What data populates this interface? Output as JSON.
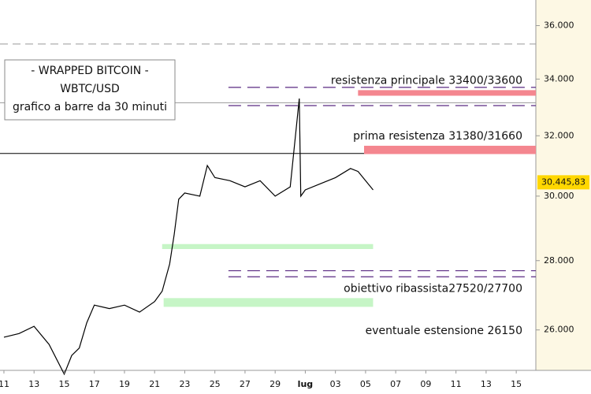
{
  "chart_data": {
    "type": "line",
    "title_lines": [
      "- WRAPPED BITCOIN -",
      "WBTC/USD",
      "grafico a barre da 30 minuti"
    ],
    "log_scale": true,
    "xlim": [
      -0.26,
      35.3
    ],
    "ylim": [
      24900,
      37000
    ],
    "xticks": [
      {
        "value": 0,
        "label": "11"
      },
      {
        "value": 2,
        "label": "13"
      },
      {
        "value": 4,
        "label": "15"
      },
      {
        "value": 6,
        "label": "17"
      },
      {
        "value": 8,
        "label": "19"
      },
      {
        "value": 10,
        "label": "21"
      },
      {
        "value": 12,
        "label": "23"
      },
      {
        "value": 14,
        "label": "25"
      },
      {
        "value": 16,
        "label": "27"
      },
      {
        "value": 18,
        "label": "29"
      },
      {
        "value": 20,
        "label": "lug"
      },
      {
        "value": 22,
        "label": "03"
      },
      {
        "value": 24,
        "label": "05"
      },
      {
        "value": 26,
        "label": "07"
      },
      {
        "value": 28,
        "label": "09"
      },
      {
        "value": 30,
        "label": "11"
      },
      {
        "value": 32,
        "label": "13"
      },
      {
        "value": 34,
        "label": "15"
      }
    ],
    "yticks": [
      {
        "value": 26000,
        "label": "26.000"
      },
      {
        "value": 28000,
        "label": "28.000"
      },
      {
        "value": 30000,
        "label": "30.000"
      },
      {
        "value": 32000,
        "label": "32.000"
      },
      {
        "value": 34000,
        "label": "34.000"
      },
      {
        "value": 36000,
        "label": "36.000"
      }
    ],
    "series": [
      {
        "name": "WBTC/USD",
        "color": "#000000",
        "x": [
          0,
          1,
          2,
          3,
          4,
          4.5,
          5,
          5.5,
          6,
          7,
          8,
          9,
          10,
          10.5,
          11,
          11.3,
          11.6,
          12,
          13,
          13.5,
          14,
          15,
          16,
          17,
          18,
          19,
          19.6,
          19.7,
          20,
          21,
          22,
          23,
          23.5,
          24,
          24.5
        ],
        "values": [
          25800,
          25900,
          26100,
          25600,
          24800,
          25300,
          25500,
          26200,
          26700,
          26600,
          26700,
          26500,
          26800,
          27100,
          27900,
          28800,
          29900,
          30100,
          30000,
          31000,
          30600,
          30500,
          30300,
          30500,
          30000,
          30300,
          33300,
          30000,
          30200,
          30400,
          30600,
          30900,
          30800,
          30500,
          30200
        ]
      }
    ],
    "last_price": {
      "value": 30445.83,
      "label": "30.445,83",
      "color": "#ffd700"
    },
    "zones": [
      {
        "label": "resistenza principale 33400/33600",
        "low": 33400,
        "high": 33600,
        "x": [
          23.5,
          35.3
        ],
        "color": "#f4868f"
      },
      {
        "label": "prima resistenza 31380/31660",
        "low": 31380,
        "high": 31660,
        "x": [
          23.9,
          35.3
        ],
        "color": "#f4868f"
      },
      {
        "low": 28350,
        "high": 28500,
        "x": [
          10.5,
          24.5
        ],
        "color": "#c6f5c6"
      },
      {
        "low": 26650,
        "high": 26900,
        "x": [
          10.6,
          24.5
        ],
        "color": "#c6f5c6"
      }
    ],
    "dashed_levels": [
      {
        "value": 33700,
        "x": [
          14.9,
          35.3
        ],
        "color": "#5a2a82"
      },
      {
        "value": 33050,
        "x": [
          14.9,
          35.3
        ],
        "color": "#5a2a82"
      },
      {
        "value": 27700,
        "x": [
          14.9,
          35.3
        ],
        "color": "#5a2a82"
      },
      {
        "value": 27520,
        "x": [
          14.9,
          35.3
        ],
        "color": "#5a2a82"
      }
    ],
    "lines": [
      {
        "value": 31400,
        "color": "#000000"
      },
      {
        "value": 33150,
        "color": "#999999"
      },
      {
        "value": 35300,
        "color": "#999999",
        "dash": true
      }
    ],
    "annotations": [
      {
        "text": "obiettivo ribassista27520/27700",
        "value": 27520
      },
      {
        "text": "eventuale estensione 26150",
        "value": 26150
      }
    ]
  }
}
